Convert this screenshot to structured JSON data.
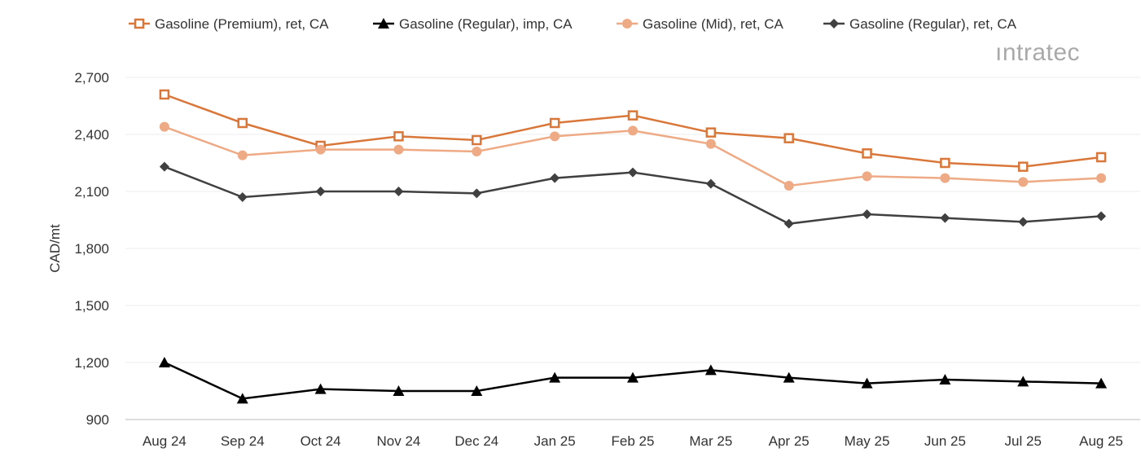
{
  "chart_data": {
    "type": "line",
    "title": "",
    "xlabel": "",
    "ylabel": "CAD/mt",
    "ylim": [
      900,
      2700
    ],
    "yticks": [
      900,
      1200,
      1500,
      1800,
      2100,
      2400,
      2700
    ],
    "ytick_labels": [
      "900",
      "1,200",
      "1,500",
      "1,800",
      "2,100",
      "2,400",
      "2,700"
    ],
    "grid": true,
    "legend_position": "top",
    "categories": [
      "Aug 24",
      "Sep 24",
      "Oct 24",
      "Nov 24",
      "Dec 24",
      "Jan 25",
      "Feb 25",
      "Mar 25",
      "Apr 25",
      "May 25",
      "Jun 25",
      "Jul 25",
      "Aug 25"
    ],
    "series": [
      {
        "name": "Gasoline (Premium), ret, CA",
        "color": "#d9773a",
        "marker": "square-open",
        "values": [
          2610,
          2460,
          2340,
          2390,
          2370,
          2460,
          2500,
          2410,
          2380,
          2300,
          2250,
          2230,
          2280
        ]
      },
      {
        "name": "Gasoline (Regular), imp, CA",
        "color": "#000000",
        "marker": "triangle",
        "values": [
          1200,
          1010,
          1060,
          1050,
          1050,
          1120,
          1120,
          1160,
          1120,
          1090,
          1110,
          1100,
          1090
        ]
      },
      {
        "name": "Gasoline (Mid), ret, CA",
        "color": "#eeaa84",
        "marker": "circle",
        "values": [
          2440,
          2290,
          2320,
          2320,
          2310,
          2390,
          2420,
          2350,
          2130,
          2180,
          2170,
          2150,
          2170
        ]
      },
      {
        "name": "Gasoline (Regular), ret, CA",
        "color": "#404040",
        "marker": "diamond",
        "values": [
          2230,
          2070,
          2100,
          2100,
          2090,
          2170,
          2200,
          2140,
          1930,
          1980,
          1960,
          1940,
          1970
        ]
      }
    ]
  },
  "logo": "intratec"
}
